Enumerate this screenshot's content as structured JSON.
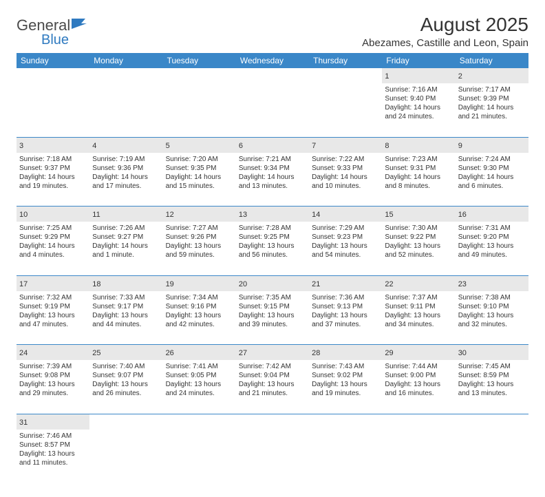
{
  "logo": {
    "text1": "General",
    "text2": "Blue"
  },
  "title": "August 2025",
  "location": "Abezames, Castille and Leon, Spain",
  "colors": {
    "header_bg": "#3a87c8",
    "header_text": "#ffffff",
    "daynum_bg": "#e8e8e8",
    "row_divider": "#3a87c8",
    "logo_blue": "#2f7ac0"
  },
  "dayHeaders": [
    "Sunday",
    "Monday",
    "Tuesday",
    "Wednesday",
    "Thursday",
    "Friday",
    "Saturday"
  ],
  "weeks": [
    [
      null,
      null,
      null,
      null,
      null,
      {
        "n": "1",
        "sr": "7:16 AM",
        "ss": "9:40 PM",
        "dl": "14 hours and 24 minutes."
      },
      {
        "n": "2",
        "sr": "7:17 AM",
        "ss": "9:39 PM",
        "dl": "14 hours and 21 minutes."
      }
    ],
    [
      {
        "n": "3",
        "sr": "7:18 AM",
        "ss": "9:37 PM",
        "dl": "14 hours and 19 minutes."
      },
      {
        "n": "4",
        "sr": "7:19 AM",
        "ss": "9:36 PM",
        "dl": "14 hours and 17 minutes."
      },
      {
        "n": "5",
        "sr": "7:20 AM",
        "ss": "9:35 PM",
        "dl": "14 hours and 15 minutes."
      },
      {
        "n": "6",
        "sr": "7:21 AM",
        "ss": "9:34 PM",
        "dl": "14 hours and 13 minutes."
      },
      {
        "n": "7",
        "sr": "7:22 AM",
        "ss": "9:33 PM",
        "dl": "14 hours and 10 minutes."
      },
      {
        "n": "8",
        "sr": "7:23 AM",
        "ss": "9:31 PM",
        "dl": "14 hours and 8 minutes."
      },
      {
        "n": "9",
        "sr": "7:24 AM",
        "ss": "9:30 PM",
        "dl": "14 hours and 6 minutes."
      }
    ],
    [
      {
        "n": "10",
        "sr": "7:25 AM",
        "ss": "9:29 PM",
        "dl": "14 hours and 4 minutes."
      },
      {
        "n": "11",
        "sr": "7:26 AM",
        "ss": "9:27 PM",
        "dl": "14 hours and 1 minute."
      },
      {
        "n": "12",
        "sr": "7:27 AM",
        "ss": "9:26 PM",
        "dl": "13 hours and 59 minutes."
      },
      {
        "n": "13",
        "sr": "7:28 AM",
        "ss": "9:25 PM",
        "dl": "13 hours and 56 minutes."
      },
      {
        "n": "14",
        "sr": "7:29 AM",
        "ss": "9:23 PM",
        "dl": "13 hours and 54 minutes."
      },
      {
        "n": "15",
        "sr": "7:30 AM",
        "ss": "9:22 PM",
        "dl": "13 hours and 52 minutes."
      },
      {
        "n": "16",
        "sr": "7:31 AM",
        "ss": "9:20 PM",
        "dl": "13 hours and 49 minutes."
      }
    ],
    [
      {
        "n": "17",
        "sr": "7:32 AM",
        "ss": "9:19 PM",
        "dl": "13 hours and 47 minutes."
      },
      {
        "n": "18",
        "sr": "7:33 AM",
        "ss": "9:17 PM",
        "dl": "13 hours and 44 minutes."
      },
      {
        "n": "19",
        "sr": "7:34 AM",
        "ss": "9:16 PM",
        "dl": "13 hours and 42 minutes."
      },
      {
        "n": "20",
        "sr": "7:35 AM",
        "ss": "9:15 PM",
        "dl": "13 hours and 39 minutes."
      },
      {
        "n": "21",
        "sr": "7:36 AM",
        "ss": "9:13 PM",
        "dl": "13 hours and 37 minutes."
      },
      {
        "n": "22",
        "sr": "7:37 AM",
        "ss": "9:11 PM",
        "dl": "13 hours and 34 minutes."
      },
      {
        "n": "23",
        "sr": "7:38 AM",
        "ss": "9:10 PM",
        "dl": "13 hours and 32 minutes."
      }
    ],
    [
      {
        "n": "24",
        "sr": "7:39 AM",
        "ss": "9:08 PM",
        "dl": "13 hours and 29 minutes."
      },
      {
        "n": "25",
        "sr": "7:40 AM",
        "ss": "9:07 PM",
        "dl": "13 hours and 26 minutes."
      },
      {
        "n": "26",
        "sr": "7:41 AM",
        "ss": "9:05 PM",
        "dl": "13 hours and 24 minutes."
      },
      {
        "n": "27",
        "sr": "7:42 AM",
        "ss": "9:04 PM",
        "dl": "13 hours and 21 minutes."
      },
      {
        "n": "28",
        "sr": "7:43 AM",
        "ss": "9:02 PM",
        "dl": "13 hours and 19 minutes."
      },
      {
        "n": "29",
        "sr": "7:44 AM",
        "ss": "9:00 PM",
        "dl": "13 hours and 16 minutes."
      },
      {
        "n": "30",
        "sr": "7:45 AM",
        "ss": "8:59 PM",
        "dl": "13 hours and 13 minutes."
      }
    ],
    [
      {
        "n": "31",
        "sr": "7:46 AM",
        "ss": "8:57 PM",
        "dl": "13 hours and 11 minutes."
      },
      null,
      null,
      null,
      null,
      null,
      null
    ]
  ],
  "labels": {
    "sunrise": "Sunrise:",
    "sunset": "Sunset:",
    "daylight": "Daylight:"
  }
}
